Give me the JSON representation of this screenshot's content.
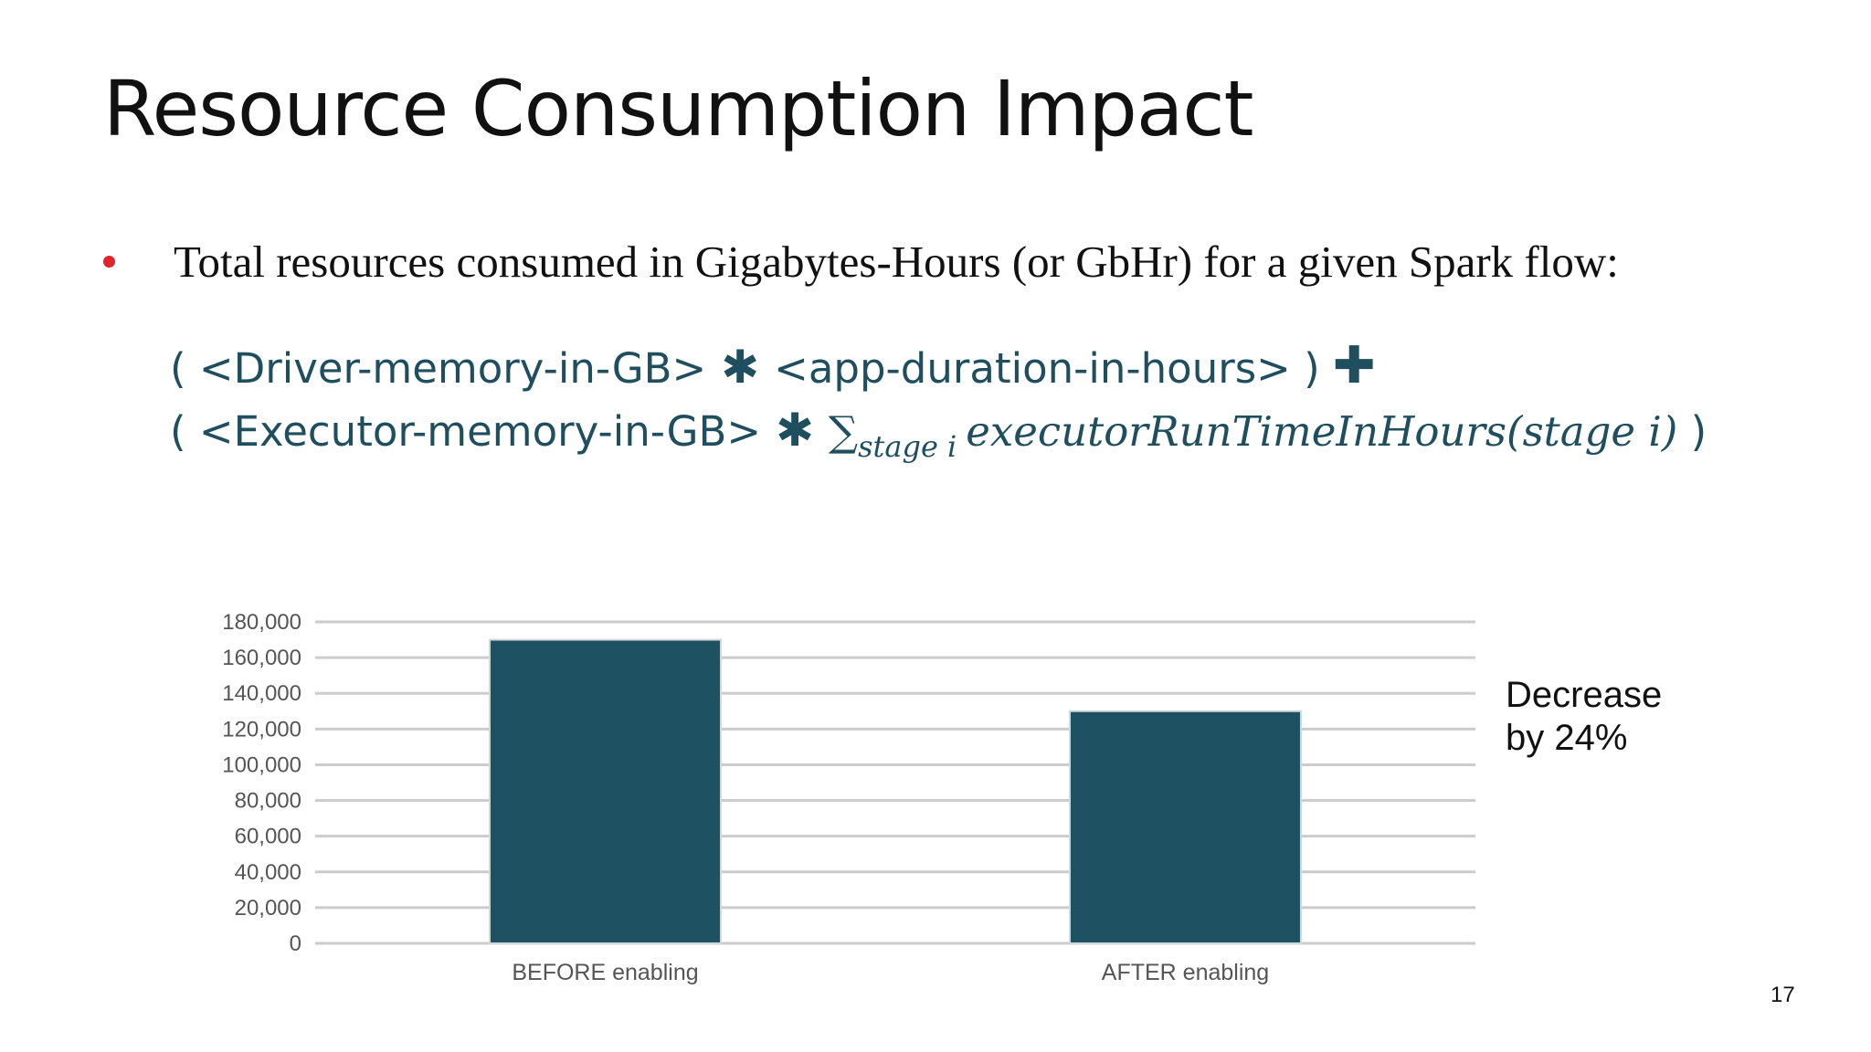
{
  "slide": {
    "title": "Resource Consumption Impact",
    "bullet": "Total resources consumed in Gigabytes-Hours (or GbHr) for a given Spark flow:",
    "formula": {
      "line1": {
        "open": "( <Driver-memory-in-GB>",
        "op": "✱",
        "term": "<app-duration-in-hours> )",
        "plus": "✚"
      },
      "line2": {
        "open": "( <Executor-memory-in-GB>",
        "op": "✱",
        "sigma": "∑",
        "sub": "stage i",
        "expr": "executorRunTimeInHours(stage i)",
        "close": " )"
      }
    },
    "annotation": {
      "line1": "Decrease",
      "line2": "by 24%"
    },
    "page_number": "17"
  },
  "colors": {
    "bar": "#1e5162",
    "grid": "#cccccc",
    "bullet": "#e0242a",
    "formula": "#1f4e5f",
    "tick_text": "#555555"
  },
  "chart_data": {
    "type": "bar",
    "categories": [
      "BEFORE enabling",
      "AFTER enabling"
    ],
    "values": [
      170000,
      130000
    ],
    "ylim": [
      0,
      180000
    ],
    "yticks": [
      0,
      20000,
      40000,
      60000,
      80000,
      100000,
      120000,
      140000,
      160000,
      180000
    ],
    "ytick_labels": [
      "0",
      "20,000",
      "40,000",
      "60,000",
      "80,000",
      "100,000",
      "120,000",
      "140,000",
      "160,000",
      "180,000"
    ],
    "grid": true,
    "legend": "none",
    "title": "",
    "xlabel": "",
    "ylabel": ""
  }
}
